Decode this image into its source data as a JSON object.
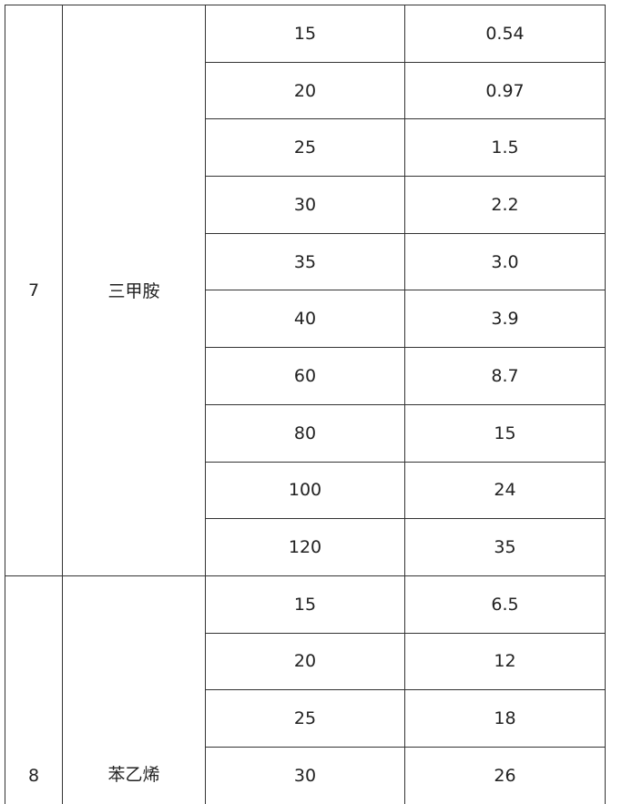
{
  "table": {
    "groups": [
      {
        "no": "7",
        "name": "三甲胺",
        "rows": [
          [
            "15",
            "0.54"
          ],
          [
            "20",
            "0.97"
          ],
          [
            "25",
            "1.5"
          ],
          [
            "30",
            "2.2"
          ],
          [
            "35",
            "3.0"
          ],
          [
            "40",
            "3.9"
          ],
          [
            "60",
            "8.7"
          ],
          [
            "80",
            "15"
          ],
          [
            "100",
            "24"
          ],
          [
            "120",
            "35"
          ]
        ]
      },
      {
        "no": "8",
        "name": "苯乙烯",
        "rows": [
          [
            "15",
            "6.5"
          ],
          [
            "20",
            "12"
          ],
          [
            "25",
            "18"
          ],
          [
            "30",
            "26"
          ]
        ]
      }
    ]
  }
}
